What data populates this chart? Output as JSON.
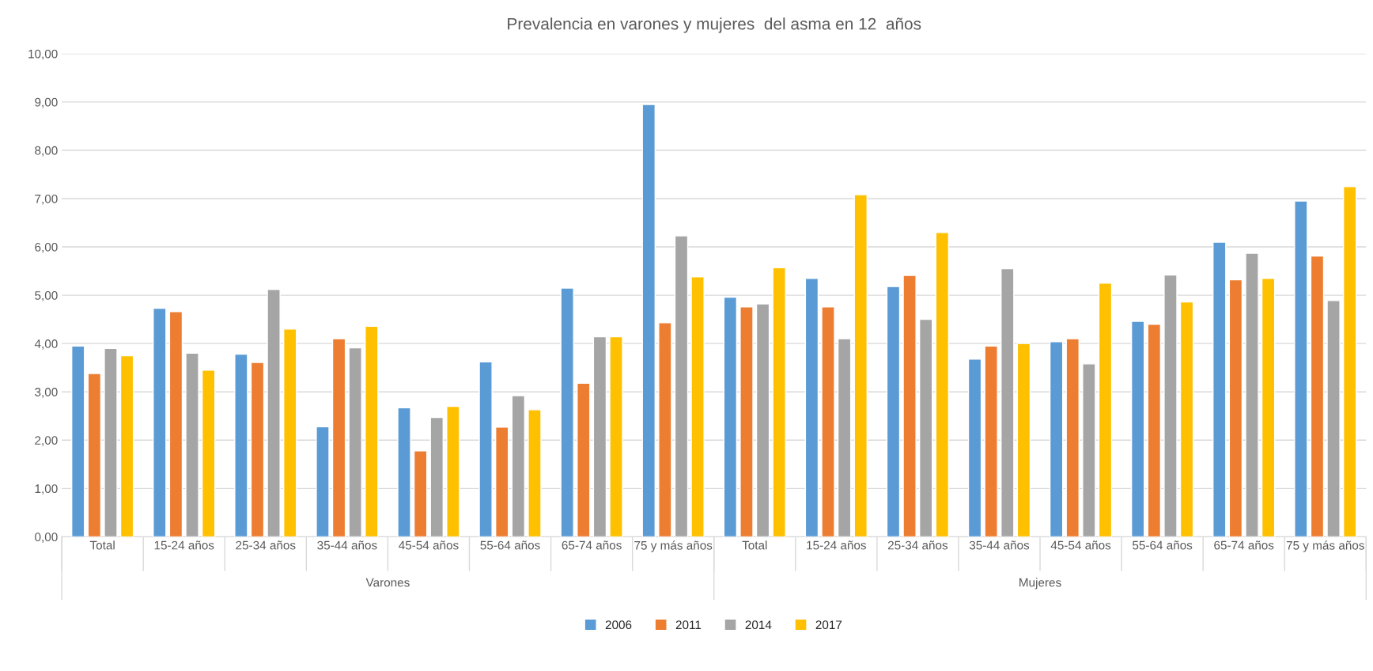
{
  "chart_data": {
    "type": "bar",
    "title": "Prevalencia en varones y mujeres  del asma en 12  años",
    "categories": [
      "Total",
      "15-24 años",
      "25-34 años",
      "35-44 años",
      "45-54 años",
      "55-64 años",
      "65-74 años",
      "75 y más años",
      "Total",
      "15-24 años",
      "25-34 años",
      "35-44 años",
      "45-54 años",
      "55-64 años",
      "65-74 años",
      "75 y más años"
    ],
    "series": [
      {
        "name": "2006",
        "color": "#5b9bd5",
        "values": [
          3.95,
          4.73,
          3.78,
          2.28,
          2.67,
          3.62,
          5.15,
          8.95,
          4.96,
          5.35,
          5.18,
          3.68,
          4.04,
          4.46,
          6.1,
          6.95
        ]
      },
      {
        "name": "2011",
        "color": "#ed7d31",
        "values": [
          3.38,
          4.66,
          3.61,
          4.1,
          1.78,
          2.27,
          3.18,
          4.43,
          4.76,
          4.76,
          5.41,
          3.95,
          4.1,
          4.4,
          5.32,
          5.81
        ]
      },
      {
        "name": "2014",
        "color": "#a5a5a5",
        "values": [
          3.9,
          3.8,
          5.12,
          3.91,
          2.47,
          2.92,
          4.14,
          6.23,
          4.82,
          4.1,
          4.5,
          5.55,
          3.58,
          5.42,
          5.87,
          4.89
        ]
      },
      {
        "name": "2017",
        "color": "#ffc000",
        "values": [
          3.75,
          3.45,
          4.3,
          4.36,
          2.7,
          2.63,
          4.14,
          5.38,
          5.57,
          7.08,
          6.3,
          4.0,
          5.25,
          4.86,
          5.35,
          7.25
        ]
      }
    ],
    "annotations": [
      "Varones",
      "Mujeres"
    ],
    "ylim": [
      0,
      10
    ],
    "yticks": [
      {
        "value": 0,
        "label": "0,00"
      },
      {
        "value": 1,
        "label": "1,00"
      },
      {
        "value": 2,
        "label": "2,00"
      },
      {
        "value": 3,
        "label": "3,00"
      },
      {
        "value": 4,
        "label": "4,00"
      },
      {
        "value": 5,
        "label": "5,00"
      },
      {
        "value": 6,
        "label": "6,00"
      },
      {
        "value": 7,
        "label": "7,00"
      },
      {
        "value": 8,
        "label": "8,00"
      },
      {
        "value": 9,
        "label": "9,00"
      },
      {
        "value": 10,
        "label": "10,00"
      }
    ],
    "grid": "y",
    "legend": "bottom"
  }
}
